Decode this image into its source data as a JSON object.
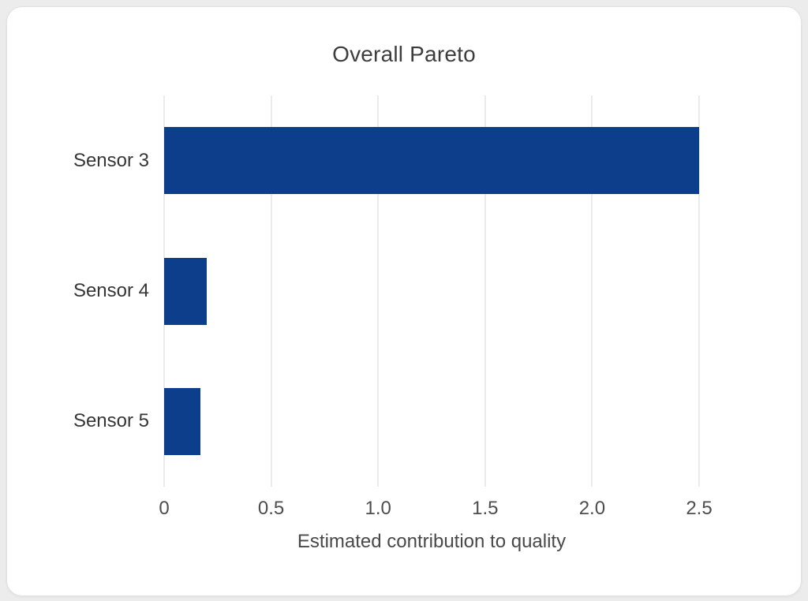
{
  "page": {
    "background_color": "#ececec",
    "card_background": "#ffffff"
  },
  "chart_data": {
    "type": "bar",
    "orientation": "horizontal",
    "title": "Overall Pareto",
    "categories": [
      "Sensor 3",
      "Sensor 4",
      "Sensor 5"
    ],
    "values": [
      2.5,
      0.2,
      0.17
    ],
    "xlabel": "Estimated contribution to quality",
    "ylabel": "",
    "xlim": [
      0,
      2.5
    ],
    "xticks": [
      0,
      0.5,
      1.0,
      1.5,
      2.0,
      2.5
    ],
    "xtick_labels": [
      "0",
      "0.5",
      "1.0",
      "1.5",
      "2.0",
      "2.5"
    ],
    "grid": true,
    "gridline_color": "#ebebeb",
    "bar_color": "#0c3e8c",
    "legend": false
  }
}
